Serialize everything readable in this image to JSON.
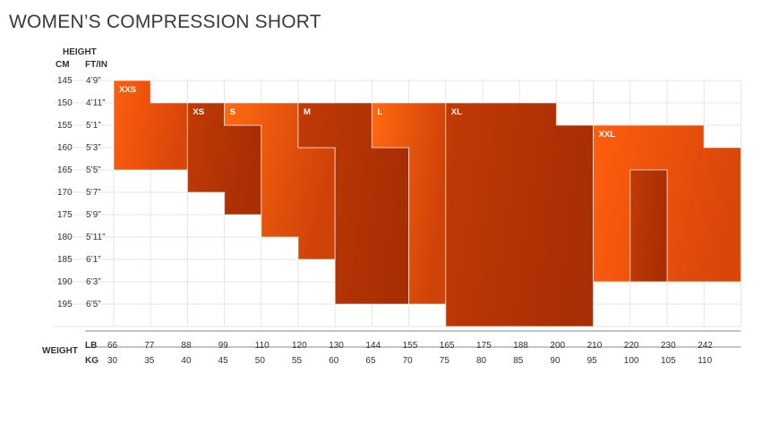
{
  "title": "WOMEN’S COMPRESSION SHORT",
  "chart_data": {
    "type": "table",
    "title": "WOMEN’S COMPRESSION SHORT",
    "ylabel": "HEIGHT",
    "ylabel_cm": "CM",
    "ylabel_ftin": "FT/IN",
    "xlabel": "WEIGHT",
    "xlabel_lb": "LB",
    "xlabel_kg": "KG",
    "height_cm": [
      "145",
      "150",
      "155",
      "160",
      "165",
      "170",
      "175",
      "180",
      "185",
      "190",
      "195"
    ],
    "height_ftin": [
      "4’9”",
      "4’11”",
      "5’1”",
      "5’3”",
      "5’5”",
      "5’7”",
      "5’9”",
      "5’11”",
      "6’1”",
      "6’3”",
      "6’5”"
    ],
    "weight_lb": [
      "66",
      "77",
      "88",
      "99",
      "110",
      "120",
      "130",
      "144",
      "155",
      "165",
      "175",
      "188",
      "200",
      "210",
      "220",
      "230",
      "242"
    ],
    "weight_kg": [
      "30",
      "35",
      "40",
      "45",
      "50",
      "55",
      "60",
      "65",
      "70",
      "75",
      "80",
      "85",
      "90",
      "95",
      "100",
      "105",
      "110"
    ],
    "sizes": [
      {
        "name": "XXS",
        "color": "#FF5A0A",
        "cells": [
          [
            0,
            0
          ],
          [
            0,
            1
          ],
          [
            1,
            1
          ],
          [
            1,
            2
          ],
          [
            1,
            3
          ],
          [
            0,
            4
          ]
        ],
        "polygon_cells": [
          [
            0,
            0,
            1,
            1
          ],
          [
            0,
            1,
            2,
            5
          ]
        ]
      },
      {
        "name": "XS",
        "color": "#E8470A"
      },
      {
        "name": "S",
        "color": "#FF5A0A"
      },
      {
        "name": "M",
        "color": "#C43A06"
      },
      {
        "name": "L",
        "color": "#FF6A10"
      },
      {
        "name": "XL",
        "color": "#B83505"
      },
      {
        "name": "XXL",
        "color": "#FF5A0A"
      }
    ],
    "regions": [
      {
        "name": "XXS",
        "rows_by_col": [
          [
            0,
            4
          ],
          [
            1,
            4
          ]
        ],
        "col_start": 0
      },
      {
        "name": "XS",
        "rows_by_col": [
          [
            1,
            5
          ],
          [
            1,
            5
          ]
        ],
        "col_start": 2
      },
      {
        "name": "S",
        "rows_by_col": [
          [
            1,
            6
          ],
          [
            2,
            7
          ]
        ],
        "col_start": 3
      },
      {
        "name": "M",
        "rows_by_col": [
          [
            1,
            8
          ],
          [
            1,
            9
          ]
        ],
        "col_start": 5
      },
      {
        "name": "L",
        "rows_by_col": [
          [
            1,
            9
          ],
          [
            1,
            9
          ]
        ],
        "col_start": 7
      },
      {
        "name": "XL",
        "rows_by_col": [
          [
            1,
            10
          ],
          [
            2,
            10
          ],
          [
            2,
            10
          ]
        ],
        "col_start": 9
      },
      {
        "name": "XXL",
        "rows_by_col": [
          [
            3,
            9
          ],
          [
            3,
            9
          ],
          [
            3,
            9
          ]
        ],
        "col_start": 13
      }
    ],
    "grid": true
  },
  "colors": {
    "grid": "#e6e6e6",
    "axis": "#888888",
    "orange_light": "#FF6A10",
    "orange_dark": "#B33304"
  }
}
